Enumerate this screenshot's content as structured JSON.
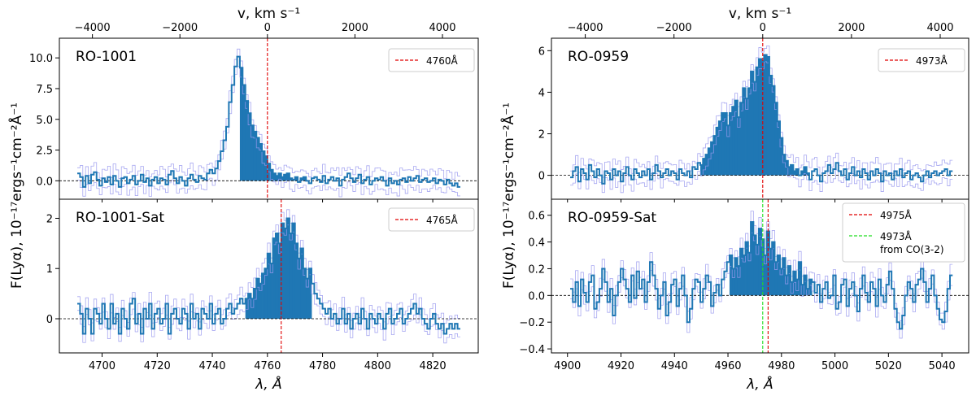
{
  "figure_title": "",
  "chart_data": [
    {
      "type": "line",
      "name": "left-column",
      "x_label": "λ, Å",
      "x_ticks": [
        4700,
        4720,
        4740,
        4760,
        4780,
        4800,
        4820
      ],
      "xlim": [
        4684.5,
        4836.5
      ],
      "top_axis": {
        "label": "v, km s⁻¹",
        "ticks": [
          -4000,
          -2000,
          0,
          2000,
          4000
        ],
        "zero_wavelength": 4760
      },
      "shared_y_label": "F(Lyα), 10⁻¹⁷ergs⁻¹cm⁻²Å⁻¹",
      "spectrum_x_range": [
        4691,
        4830
      ],
      "panels": [
        {
          "title": "RO-1001",
          "ylim": [
            -1.5,
            11.6
          ],
          "y_ticks": [
            0.0,
            2.5,
            5.0,
            7.5,
            10.0
          ],
          "y_tick_labels": [
            "0.0",
            "2.5",
            "5.0",
            "7.5",
            "10.0"
          ],
          "emission_range": [
            4750,
            4776
          ],
          "line_x": 4760,
          "legend": [
            {
              "label": "4760Å",
              "color": "#e00000"
            }
          ],
          "series": [
            {
              "name": "flux",
              "color": "#1f77b4",
              "values": [
                0.6,
                0.3,
                -0.5,
                0.4,
                -0.2,
                0.5,
                0.7,
                0.1,
                -0.4,
                0.2,
                -0.1,
                0.3,
                -0.3,
                0.4,
                0.0,
                -0.5,
                0.2,
                0.3,
                -0.2,
                0.1,
                0.4,
                -0.3,
                0.0,
                0.5,
                -0.1,
                0.2,
                -0.4,
                0.1,
                0.3,
                -0.2,
                0.2,
                0.1,
                -0.3,
                0.5,
                0.8,
                0.2,
                -0.2,
                0.3,
                0.0,
                -0.4,
                0.2,
                0.5,
                0.1,
                -0.1,
                0.4,
                0.2,
                0.1,
                0.6,
                0.9,
                0.6,
                1.0,
                1.6,
                2.4,
                3.3,
                4.4,
                6.4,
                7.8,
                9.3,
                10.1,
                9.2,
                7.8,
                6.5,
                5.5,
                4.5,
                4.0,
                3.5,
                3.0,
                2.4,
                2.0,
                1.4,
                0.9,
                0.6,
                0.4,
                0.6,
                0.3,
                0.5,
                0.6,
                0.2,
                0.1,
                0.3,
                -0.1,
                0.2,
                0.3,
                0.0,
                -0.2,
                0.2,
                0.3,
                0.1,
                -0.1,
                0.4,
                -0.2,
                0.1,
                0.3,
                0.0,
                0.2,
                -0.4,
                0.1,
                0.3,
                0.6,
                0.2,
                -0.1,
                0.2,
                0.5,
                -0.2,
                0.1,
                0.3,
                -0.3,
                0.0,
                0.2,
                0.1,
                0.3,
                0.0,
                -0.4,
                0.2,
                -0.2,
                0.0,
                -0.3,
                0.1,
                0.2,
                -0.1,
                0.3,
                0.0,
                0.2,
                0.4,
                -0.1,
                0.1,
                0.2,
                -0.1,
                0.0,
                0.2,
                -0.2,
                0.1,
                0.0,
                -0.3,
                0.1,
                -0.2,
                -0.4,
                -0.2,
                -0.5
              ]
            }
          ]
        },
        {
          "title": "RO-1001-Sat",
          "ylim": [
            -0.68,
            2.38
          ],
          "y_ticks": [
            0,
            1,
            2
          ],
          "y_tick_labels": [
            "0",
            "1",
            "2"
          ],
          "emission_range": [
            4752,
            4776
          ],
          "line_x": 4765,
          "legend": [
            {
              "label": "4765Å",
              "color": "#e00000"
            }
          ],
          "series": [
            {
              "name": "flux",
              "color": "#1f77b4",
              "values": [
                0.3,
                0.1,
                -0.3,
                0.2,
                0.0,
                -0.3,
                0.2,
                0.1,
                -0.1,
                0.3,
                0.0,
                -0.2,
                0.3,
                -0.1,
                0.1,
                -0.3,
                0.2,
                0.0,
                -0.2,
                0.3,
                0.4,
                -0.1,
                0.1,
                -0.3,
                0.2,
                0.0,
                0.3,
                -0.2,
                0.1,
                0.2,
                -0.1,
                0.0,
                0.3,
                -0.3,
                0.1,
                0.2,
                0.0,
                -0.1,
                0.2,
                0.1,
                -0.2,
                0.3,
                0.0,
                0.1,
                -0.2,
                0.2,
                0.1,
                0.0,
                0.3,
                -0.1,
                0.1,
                0.2,
                -0.1,
                0.0,
                0.2,
                0.3,
                0.1,
                0.2,
                0.3,
                0.4,
                0.3,
                0.4,
                0.5,
                0.4,
                0.6,
                0.8,
                0.7,
                0.9,
                1.0,
                1.3,
                1.1,
                1.6,
                1.7,
                1.5,
                1.9,
                1.8,
                2.0,
                1.7,
                1.9,
                1.5,
                1.2,
                1.4,
                1.0,
                0.8,
                1.0,
                0.7,
                0.5,
                0.4,
                0.3,
                0.2,
                0.1,
                0.2,
                0.0,
                0.1,
                -0.1,
                0.0,
                0.2,
                -0.1,
                0.1,
                -0.2,
                0.0,
                0.1,
                -0.1,
                0.2,
                0.0,
                -0.2,
                0.1,
                0.0,
                -0.1,
                0.1,
                0.0,
                -0.2,
                0.1,
                0.2,
                -0.1,
                0.0,
                0.1,
                0.2,
                -0.1,
                0.0,
                0.1,
                0.2,
                0.3,
                0.1,
                0.2,
                0.0,
                -0.1,
                -0.2,
                0.0,
                0.1,
                -0.1,
                -0.2,
                -0.1,
                -0.3,
                -0.2,
                -0.1,
                -0.2,
                -0.1,
                -0.2
              ]
            }
          ]
        }
      ]
    },
    {
      "type": "line",
      "name": "right-column",
      "x_label": "λ, Å",
      "x_ticks": [
        4900,
        4920,
        4940,
        4960,
        4980,
        5000,
        5020,
        5040
      ],
      "xlim": [
        4894,
        5050
      ],
      "top_axis": {
        "label": "v, km s⁻¹",
        "ticks": [
          -4000,
          -2000,
          0,
          2000,
          4000
        ],
        "zero_wavelength": 4973
      },
      "shared_y_label": "F(Lyα), 10⁻¹⁷ergs⁻¹cm⁻²Å⁻¹",
      "spectrum_x_range": [
        4901,
        5044
      ],
      "panels": [
        {
          "title": "RO-0959",
          "ylim": [
            -1.15,
            6.6
          ],
          "y_ticks": [
            0,
            2,
            4,
            6
          ],
          "y_tick_labels": [
            "0",
            "2",
            "4",
            "6"
          ],
          "emission_range": [
            4950,
            4990
          ],
          "line_x": 4973,
          "legend": [
            {
              "label": "4973Å",
              "color": "#e00000"
            }
          ],
          "series": [
            {
              "name": "flux",
              "color": "#1f77b4",
              "values": [
                -0.1,
                0.2,
                0.4,
                -0.3,
                0.3,
                0.1,
                -0.2,
                0.5,
                0.2,
                -0.1,
                0.3,
                0.0,
                -0.4,
                0.2,
                0.1,
                -0.2,
                0.3,
                0.0,
                0.2,
                -0.3,
                0.1,
                0.4,
                0.0,
                -0.2,
                0.3,
                0.1,
                -0.1,
                0.2,
                0.0,
                0.3,
                -0.2,
                0.1,
                0.5,
                0.2,
                -0.1,
                0.1,
                0.3,
                0.0,
                0.2,
                0.1,
                -0.2,
                0.3,
                0.1,
                0.0,
                0.2,
                -0.1,
                0.4,
                0.3,
                0.6,
                0.5,
                0.8,
                1.0,
                1.3,
                1.6,
                1.9,
                2.3,
                2.6,
                3.0,
                3.0,
                2.4,
                3.0,
                3.3,
                3.6,
                2.8,
                3.5,
                4.2,
                3.7,
                4.2,
                5.0,
                4.5,
                5.2,
                5.6,
                5.5,
                5.8,
                5.7,
                4.8,
                4.3,
                3.5,
                2.6,
                1.8,
                1.0,
                0.7,
                0.4,
                0.5,
                0.2,
                0.3,
                0.0,
                0.2,
                0.4,
                0.1,
                -0.2,
                0.2,
                0.3,
                0.0,
                -0.3,
                0.1,
                0.2,
                0.5,
                0.1,
                0.3,
                0.6,
                0.2,
                0.0,
                0.3,
                -0.2,
                0.1,
                0.4,
                0.0,
                0.2,
                -0.1,
                0.3,
                0.1,
                -0.2,
                0.2,
                0.0,
                0.3,
                0.1,
                -0.3,
                0.2,
                0.0,
                0.1,
                -0.2,
                0.2,
                0.0,
                0.3,
                -0.1,
                0.1,
                0.2,
                -0.2,
                0.0,
                0.1,
                -0.1,
                -0.3,
                0.0,
                0.2,
                -0.1,
                0.1,
                0.2,
                0.0,
                0.1,
                0.2,
                0.3,
                0.0,
                0.2
              ]
            }
          ]
        },
        {
          "title": "RO-0959-Sat",
          "ylim": [
            -0.43,
            0.72
          ],
          "y_ticks": [
            -0.4,
            -0.2,
            0.0,
            0.2,
            0.4,
            0.6
          ],
          "y_tick_labels": [
            "−0.4",
            "−0.2",
            "0.0",
            "0.2",
            "0.4",
            "0.6"
          ],
          "emission_range": [
            4961,
            4991
          ],
          "line_x": 4975,
          "line2_x": 4973,
          "legend": [
            {
              "label": "4975Å",
              "color": "#e00000"
            },
            {
              "label": "4973Å",
              "label2": "from CO(3-2)",
              "color": "#22dd22"
            }
          ],
          "series": [
            {
              "name": "flux",
              "color": "#1f77b4",
              "values": [
                0.05,
                -0.05,
                0.1,
                -0.08,
                0.12,
                0.02,
                -0.05,
                0.1,
                0.15,
                -0.1,
                -0.05,
                0.05,
                0.2,
                0.1,
                -0.05,
                0.05,
                -0.15,
                0.0,
                0.1,
                0.2,
                0.12,
                0.05,
                -0.05,
                0.15,
                -0.02,
                0.18,
                0.05,
                0.12,
                -0.05,
                0.1,
                0.25,
                0.15,
                0.05,
                -0.1,
                0.0,
                0.1,
                -0.15,
                -0.05,
                0.08,
                0.12,
                -0.08,
                0.05,
                0.15,
                0.0,
                -0.2,
                -0.1,
                0.05,
                0.12,
                0.1,
                -0.05,
                0.05,
                0.15,
                0.1,
                -0.08,
                0.02,
                0.08,
                0.0,
                0.12,
                0.18,
                0.25,
                0.3,
                0.2,
                0.28,
                0.22,
                0.35,
                0.3,
                0.4,
                0.32,
                0.55,
                0.45,
                0.38,
                0.5,
                0.42,
                0.3,
                0.48,
                0.35,
                0.4,
                0.25,
                0.3,
                0.2,
                0.28,
                0.15,
                0.22,
                0.1,
                0.18,
                0.12,
                0.25,
                0.08,
                0.15,
                0.05,
                0.12,
                0.1,
                0.02,
                0.08,
                -0.05,
                0.05,
                0.1,
                -0.02,
                0.0,
                0.15,
                -0.1,
                -0.05,
                0.08,
                0.12,
                -0.08,
                0.05,
                0.1,
                0.0,
                -0.12,
                0.05,
                0.15,
                0.02,
                -0.05,
                0.1,
                0.05,
                -0.08,
                0.12,
                0.0,
                -0.05,
                0.08,
                0.18,
                0.05,
                -0.1,
                -0.2,
                -0.25,
                -0.15,
                0.0,
                0.1,
                0.05,
                -0.05,
                0.08,
                0.12,
                0.2,
                0.1,
                -0.05,
                0.05,
                0.15,
                0.0,
                -0.1,
                -0.18,
                -0.2,
                -0.12,
                0.05,
                0.15
              ]
            }
          ]
        }
      ]
    }
  ]
}
